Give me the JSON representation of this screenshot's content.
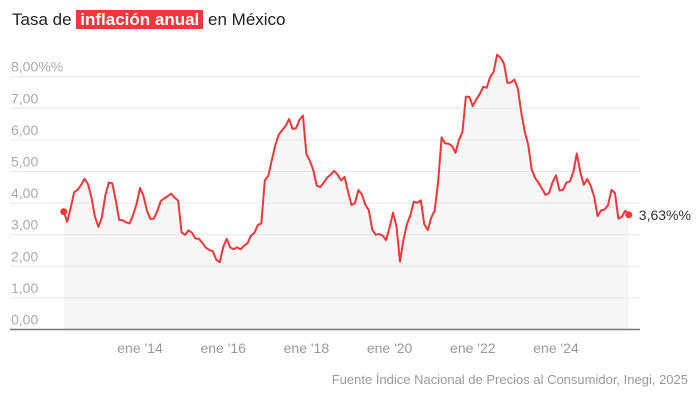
{
  "title": {
    "before": "Tasa de ",
    "highlight": "inflación anual",
    "after": " en México"
  },
  "source": "Fuente Índice Nacional de Precios al Consumidor, Inegi, 2025",
  "colors": {
    "line": "#f0373b",
    "highlight_bg": "#f0373b",
    "fill": "#f7f7f7"
  },
  "chart_data": {
    "type": "area",
    "title": "Tasa de inflación anual en México",
    "ylim": [
      0,
      8.7
    ],
    "yticks": [
      0,
      1,
      2,
      3,
      4,
      5,
      6,
      7,
      8
    ],
    "ytick_labels": [
      "0,00",
      "1,00",
      "2,00",
      "3,00",
      "4,00",
      "5,00",
      "6,00",
      "7,00",
      "8,00%%"
    ],
    "xtick_labels": [
      {
        "date": "2014-01",
        "label": "ene '14"
      },
      {
        "date": "2016-01",
        "label": "ene '16"
      },
      {
        "date": "2018-01",
        "label": "ene '18"
      },
      {
        "date": "2020-01",
        "label": "ene '20"
      },
      {
        "date": "2022-01",
        "label": "ene '22"
      },
      {
        "date": "2024-01",
        "label": "ene '24"
      }
    ],
    "grid": true,
    "start": "2012-03",
    "end_label": "3,63%%",
    "values": [
      3.73,
      3.41,
      3.85,
      4.34,
      4.42,
      4.57,
      4.77,
      4.6,
      4.18,
      3.57,
      3.25,
      3.55,
      4.25,
      4.65,
      4.63,
      4.09,
      3.47,
      3.46,
      3.39,
      3.36,
      3.62,
      3.97,
      4.48,
      4.23,
      3.76,
      3.5,
      3.51,
      3.75,
      4.07,
      4.15,
      4.22,
      4.3,
      4.17,
      4.08,
      3.07,
      3.0,
      3.14,
      3.06,
      2.88,
      2.87,
      2.74,
      2.59,
      2.52,
      2.48,
      2.21,
      2.13,
      2.61,
      2.87,
      2.6,
      2.54,
      2.6,
      2.54,
      2.65,
      2.73,
      2.97,
      3.06,
      3.31,
      3.36,
      4.72,
      4.86,
      5.35,
      5.82,
      6.16,
      6.31,
      6.44,
      6.66,
      6.35,
      6.37,
      6.63,
      6.77,
      5.55,
      5.34,
      5.04,
      4.55,
      4.51,
      4.65,
      4.81,
      4.9,
      5.02,
      4.9,
      4.72,
      4.83,
      4.37,
      3.94,
      4.0,
      4.41,
      4.28,
      3.95,
      3.78,
      3.16,
      3.0,
      3.02,
      2.97,
      2.83,
      3.24,
      3.7,
      3.25,
      2.15,
      2.84,
      3.33,
      3.62,
      4.05,
      4.01,
      4.09,
      3.33,
      3.15,
      3.54,
      3.76,
      4.67,
      6.08,
      5.89,
      5.88,
      5.81,
      5.59,
      6.0,
      6.24,
      7.37,
      7.36,
      7.07,
      7.28,
      7.45,
      7.68,
      7.65,
      7.99,
      8.15,
      8.7,
      8.6,
      8.41,
      7.8,
      7.82,
      7.91,
      7.62,
      6.85,
      6.25,
      5.84,
      5.06,
      4.79,
      4.64,
      4.45,
      4.26,
      4.32,
      4.66,
      4.88,
      4.4,
      4.42,
      4.65,
      4.69,
      4.98,
      5.57,
      4.99,
      4.58,
      4.76,
      4.55,
      4.21,
      3.59,
      3.77,
      3.8,
      3.93,
      4.42,
      4.32,
      3.51,
      3.57,
      3.76,
      3.63
    ]
  }
}
